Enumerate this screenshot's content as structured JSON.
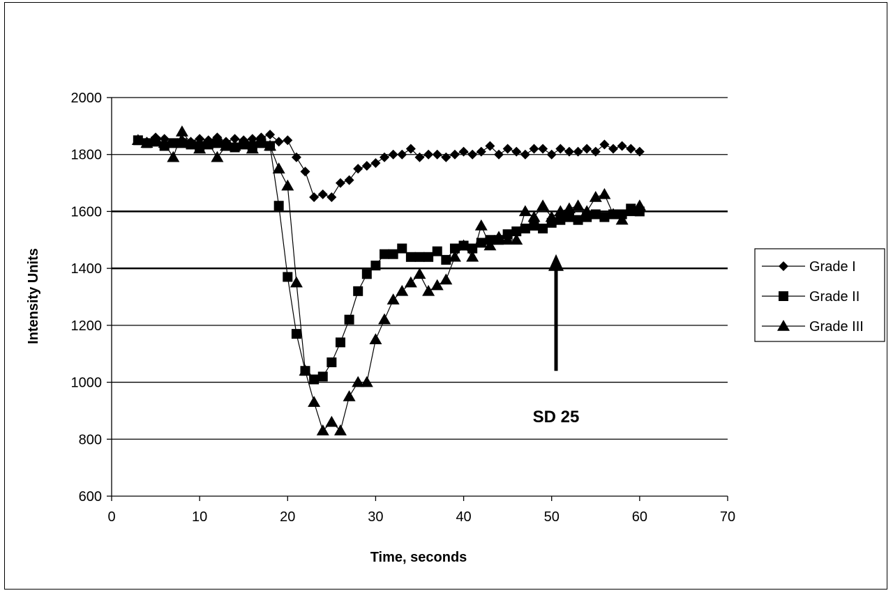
{
  "chart_data": {
    "type": "line",
    "title": "",
    "xlabel": "Time, seconds",
    "ylabel": "Intensity Units",
    "xlim": [
      0,
      70
    ],
    "ylim": [
      600,
      2000
    ],
    "x_ticks": [
      0,
      10,
      20,
      30,
      40,
      50,
      60,
      70
    ],
    "y_ticks": [
      600,
      800,
      1000,
      1200,
      1400,
      1600,
      1800,
      2000
    ],
    "grid": "horizontal",
    "legend_position": "right",
    "series": [
      {
        "name": "Grade I",
        "marker": "diamond",
        "x": [
          3,
          4,
          5,
          6,
          7,
          8,
          9,
          10,
          11,
          12,
          13,
          14,
          15,
          16,
          17,
          18,
          19,
          20,
          21,
          22,
          23,
          24,
          25,
          26,
          27,
          28,
          29,
          30,
          31,
          32,
          33,
          34,
          35,
          36,
          37,
          38,
          39,
          40,
          41,
          42,
          43,
          44,
          45,
          46,
          47,
          48,
          49,
          50,
          51,
          52,
          53,
          54,
          55,
          56,
          57,
          58,
          59,
          60
        ],
        "values": [
          1850,
          1845,
          1860,
          1855,
          1840,
          1850,
          1845,
          1855,
          1850,
          1860,
          1845,
          1855,
          1850,
          1855,
          1860,
          1870,
          1845,
          1850,
          1790,
          1740,
          1650,
          1660,
          1650,
          1700,
          1710,
          1750,
          1760,
          1770,
          1790,
          1800,
          1800,
          1820,
          1790,
          1800,
          1800,
          1790,
          1800,
          1810,
          1800,
          1810,
          1830,
          1800,
          1820,
          1810,
          1800,
          1820,
          1820,
          1800,
          1820,
          1810,
          1810,
          1820,
          1810,
          1835,
          1820,
          1830,
          1820,
          1810
        ]
      },
      {
        "name": "Grade II",
        "marker": "square",
        "x": [
          3,
          4,
          5,
          6,
          7,
          8,
          9,
          10,
          11,
          12,
          13,
          14,
          15,
          16,
          17,
          18,
          19,
          20,
          21,
          22,
          23,
          24,
          25,
          26,
          27,
          28,
          29,
          30,
          31,
          32,
          33,
          34,
          35,
          36,
          37,
          38,
          39,
          40,
          41,
          42,
          43,
          44,
          45,
          46,
          47,
          48,
          49,
          50,
          51,
          52,
          53,
          54,
          55,
          56,
          57,
          58,
          59,
          60
        ],
        "values": [
          1850,
          1840,
          1845,
          1830,
          1840,
          1840,
          1835,
          1830,
          1835,
          1840,
          1830,
          1825,
          1835,
          1830,
          1840,
          1830,
          1620,
          1370,
          1170,
          1040,
          1010,
          1020,
          1070,
          1140,
          1220,
          1320,
          1380,
          1410,
          1450,
          1450,
          1470,
          1440,
          1440,
          1440,
          1460,
          1430,
          1470,
          1480,
          1470,
          1490,
          1500,
          1500,
          1520,
          1530,
          1540,
          1550,
          1540,
          1560,
          1570,
          1580,
          1570,
          1580,
          1590,
          1580,
          1590,
          1590,
          1610,
          1600
        ]
      },
      {
        "name": "Grade III",
        "marker": "triangle",
        "x": [
          3,
          4,
          5,
          6,
          7,
          8,
          9,
          10,
          11,
          12,
          13,
          14,
          15,
          16,
          17,
          18,
          19,
          20,
          21,
          22,
          23,
          24,
          25,
          26,
          27,
          28,
          29,
          30,
          31,
          32,
          33,
          34,
          35,
          36,
          37,
          38,
          39,
          40,
          41,
          42,
          43,
          44,
          45,
          46,
          47,
          48,
          49,
          50,
          51,
          52,
          53,
          54,
          55,
          56,
          57,
          58,
          59,
          60
        ],
        "values": [
          1850,
          1840,
          1850,
          1840,
          1790,
          1880,
          1840,
          1820,
          1840,
          1790,
          1830,
          1830,
          1840,
          1820,
          1840,
          1830,
          1750,
          1690,
          1350,
          1040,
          930,
          830,
          860,
          830,
          950,
          1000,
          1000,
          1150,
          1220,
          1290,
          1320,
          1350,
          1380,
          1320,
          1340,
          1360,
          1440,
          1480,
          1440,
          1550,
          1480,
          1510,
          1500,
          1500,
          1600,
          1580,
          1620,
          1580,
          1600,
          1610,
          1620,
          1600,
          1650,
          1660,
          1590,
          1570,
          1600,
          1620
        ]
      }
    ],
    "annotations": [
      {
        "text": "SD 25",
        "x": 50.5,
        "y": 860
      },
      {
        "type": "arrow",
        "x": 50.5,
        "y_from": 1040,
        "y_to": 1440
      }
    ]
  }
}
